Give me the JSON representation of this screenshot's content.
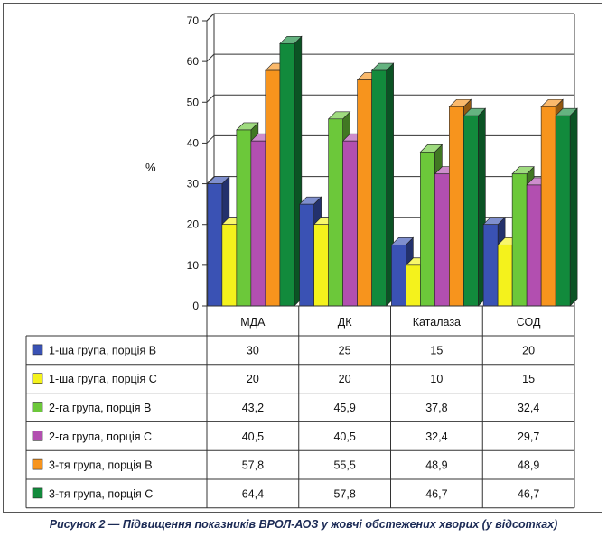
{
  "caption": "Рисунок 2 — Підвищення показників ВРОЛ-АОЗ у жовчі обстежених хворих (у відсотках)",
  "chart_data": {
    "type": "bar",
    "ylabel": "%",
    "ylim": [
      0,
      70
    ],
    "yticks": [
      0,
      10,
      20,
      30,
      40,
      50,
      60,
      70
    ],
    "categories": [
      "МДА",
      "ДК",
      "Каталаза",
      "СОД"
    ],
    "series": [
      {
        "name": "1-ша група, порція В",
        "color": "#3a52b4",
        "values": [
          30,
          25,
          15,
          20
        ],
        "labels": [
          "30",
          "25",
          "15",
          "20"
        ]
      },
      {
        "name": "1-ша група, порція С",
        "color": "#f4f21c",
        "values": [
          20,
          20,
          10,
          15
        ],
        "labels": [
          "20",
          "20",
          "10",
          "15"
        ]
      },
      {
        "name": "2-га група, порція В",
        "color": "#6cc83a",
        "values": [
          43.2,
          45.9,
          37.8,
          32.4
        ],
        "labels": [
          "43,2",
          "45,9",
          "37,8",
          "32,4"
        ]
      },
      {
        "name": "2-га група, порція С",
        "color": "#b24fb0",
        "values": [
          40.5,
          40.5,
          32.4,
          29.7
        ],
        "labels": [
          "40,5",
          "40,5",
          "32,4",
          "29,7"
        ]
      },
      {
        "name": "3-тя група, порція В",
        "color": "#f7941d",
        "values": [
          57.8,
          55.5,
          48.9,
          48.9
        ],
        "labels": [
          "57,8",
          "55,5",
          "48,9",
          "48,9"
        ]
      },
      {
        "name": "3-тя група, порція С",
        "color": "#128a3c",
        "values": [
          64.4,
          57.8,
          46.7,
          46.7
        ],
        "labels": [
          "64,4",
          "57,8",
          "46,7",
          "46,7"
        ]
      }
    ],
    "grid": true,
    "legend": "table-below"
  }
}
